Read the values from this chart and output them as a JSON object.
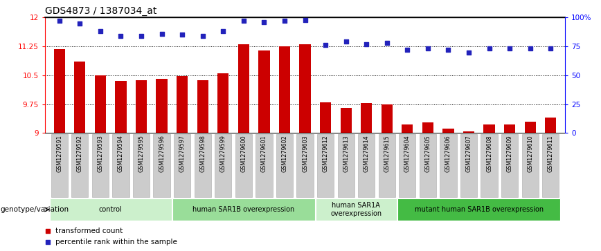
{
  "title": "GDS4873 / 1387034_at",
  "samples": [
    "GSM1279591",
    "GSM1279592",
    "GSM1279593",
    "GSM1279594",
    "GSM1279595",
    "GSM1279596",
    "GSM1279597",
    "GSM1279598",
    "GSM1279599",
    "GSM1279600",
    "GSM1279601",
    "GSM1279602",
    "GSM1279603",
    "GSM1279612",
    "GSM1279613",
    "GSM1279614",
    "GSM1279615",
    "GSM1279604",
    "GSM1279605",
    "GSM1279606",
    "GSM1279607",
    "GSM1279608",
    "GSM1279609",
    "GSM1279610",
    "GSM1279611"
  ],
  "bar_values": [
    11.18,
    10.85,
    10.5,
    10.35,
    10.38,
    10.4,
    10.48,
    10.38,
    10.55,
    11.3,
    11.15,
    11.25,
    11.3,
    9.8,
    9.65,
    9.78,
    9.75,
    9.22,
    9.28,
    9.12,
    9.05,
    9.22,
    9.22,
    9.3,
    9.4
  ],
  "dot_values_pct": [
    97,
    95,
    88,
    84,
    84,
    86,
    85,
    84,
    88,
    97,
    96,
    97,
    98,
    76,
    79,
    77,
    78,
    72,
    73,
    72,
    70,
    73,
    73,
    73,
    73
  ],
  "ylim_left": [
    9.0,
    12.0
  ],
  "ylim_right": [
    0,
    100
  ],
  "yticks_left": [
    9.0,
    9.75,
    10.5,
    11.25,
    12.0
  ],
  "ytick_labels_left": [
    "9",
    "9.75",
    "10.5",
    "11.25",
    "12"
  ],
  "yticks_right": [
    0,
    25,
    50,
    75,
    100
  ],
  "ytick_labels_right": [
    "0",
    "25",
    "50",
    "75",
    "100%"
  ],
  "bar_color": "#CC0000",
  "dot_color": "#2222BB",
  "gridline_yticks": [
    9.75,
    10.5,
    11.25
  ],
  "groups": [
    {
      "label": "control",
      "start": 0,
      "end": 5,
      "color": "#ccf0cc"
    },
    {
      "label": "human SAR1B overexpression",
      "start": 6,
      "end": 12,
      "color": "#99dd99"
    },
    {
      "label": "human SAR1A\noverexpression",
      "start": 13,
      "end": 16,
      "color": "#ccf0cc"
    },
    {
      "label": "mutant human SAR1B overexpression",
      "start": 17,
      "end": 24,
      "color": "#44bb44"
    }
  ],
  "genotype_label": "genotype/variation",
  "legend_items": [
    {
      "color": "#CC0000",
      "label": "transformed count"
    },
    {
      "color": "#2222BB",
      "label": "percentile rank within the sample"
    }
  ],
  "bg_color": "#ffffff",
  "xtick_bg": "#cccccc",
  "xtick_edge": "#aaaaaa"
}
